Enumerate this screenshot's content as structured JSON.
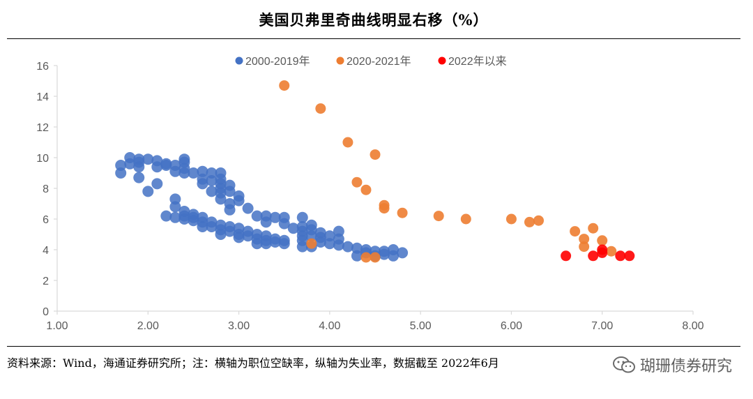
{
  "title": "美国贝弗里奇曲线明显右移（%）",
  "source": "资料来源：Wind，海通证券研究所；注：横轴为职位空缺率，纵轴为失业率，数据截至 2022年6月",
  "watermark": "瑚珊债券研究",
  "colors": {
    "blue": "#4472C4",
    "orange": "#ED7D31",
    "red": "#FF0000",
    "axis": "#D9D9D9",
    "text": "#595959"
  },
  "chart_data": {
    "type": "scatter",
    "title": "美国贝弗里奇曲线明显右移（%）",
    "xlabel": "职位空缺率",
    "ylabel": "失业率",
    "xlim": [
      1.0,
      8.0
    ],
    "ylim": [
      0,
      16
    ],
    "xticks": [
      "1.00",
      "2.00",
      "3.00",
      "4.00",
      "5.00",
      "6.00",
      "7.00",
      "8.00"
    ],
    "yticks": [
      "0",
      "2",
      "4",
      "6",
      "8",
      "10",
      "12",
      "14",
      "16"
    ],
    "legend_position": "top",
    "series": [
      {
        "name": "2000-2019年",
        "color": "#4472C4",
        "points": [
          [
            1.7,
            9.0
          ],
          [
            1.7,
            9.5
          ],
          [
            1.8,
            10.0
          ],
          [
            1.8,
            9.6
          ],
          [
            1.9,
            9.9
          ],
          [
            1.9,
            9.7
          ],
          [
            1.9,
            9.4
          ],
          [
            1.9,
            8.7
          ],
          [
            2.0,
            9.9
          ],
          [
            2.0,
            7.8
          ],
          [
            2.1,
            9.8
          ],
          [
            2.1,
            9.4
          ],
          [
            2.1,
            8.3
          ],
          [
            2.2,
            9.6
          ],
          [
            2.2,
            9.5
          ],
          [
            2.3,
            9.5
          ],
          [
            2.3,
            9.1
          ],
          [
            2.3,
            7.3
          ],
          [
            2.3,
            6.8
          ],
          [
            2.3,
            6.1
          ],
          [
            2.2,
            6.2
          ],
          [
            2.4,
            9.9
          ],
          [
            2.4,
            9.7
          ],
          [
            2.4,
            9.3
          ],
          [
            2.4,
            9.0
          ],
          [
            2.4,
            6.5
          ],
          [
            2.4,
            6.2
          ],
          [
            2.4,
            6.0
          ],
          [
            2.5,
            9.0
          ],
          [
            2.5,
            6.3
          ],
          [
            2.5,
            6.1
          ],
          [
            2.5,
            5.9
          ],
          [
            2.6,
            9.1
          ],
          [
            2.6,
            8.6
          ],
          [
            2.6,
            8.3
          ],
          [
            2.6,
            6.1
          ],
          [
            2.6,
            5.8
          ],
          [
            2.6,
            5.5
          ],
          [
            2.7,
            9.0
          ],
          [
            2.7,
            8.5
          ],
          [
            2.7,
            7.8
          ],
          [
            2.7,
            5.8
          ],
          [
            2.7,
            5.5
          ],
          [
            2.8,
            9.0
          ],
          [
            2.8,
            8.6
          ],
          [
            2.8,
            8.3
          ],
          [
            2.8,
            8.0
          ],
          [
            2.8,
            7.7
          ],
          [
            2.8,
            7.3
          ],
          [
            2.8,
            5.6
          ],
          [
            2.8,
            5.3
          ],
          [
            2.8,
            5.0
          ],
          [
            2.9,
            8.2
          ],
          [
            2.9,
            7.8
          ],
          [
            2.9,
            7.0
          ],
          [
            2.9,
            6.6
          ],
          [
            2.9,
            5.5
          ],
          [
            2.9,
            5.2
          ],
          [
            3.0,
            7.5
          ],
          [
            3.0,
            7.2
          ],
          [
            3.0,
            5.4
          ],
          [
            3.0,
            5.0
          ],
          [
            3.0,
            4.8
          ],
          [
            3.1,
            6.7
          ],
          [
            3.1,
            5.2
          ],
          [
            3.1,
            4.9
          ],
          [
            3.2,
            6.2
          ],
          [
            3.2,
            5.0
          ],
          [
            3.2,
            4.7
          ],
          [
            3.2,
            4.4
          ],
          [
            3.3,
            6.2
          ],
          [
            3.3,
            5.8
          ],
          [
            3.3,
            4.9
          ],
          [
            3.3,
            4.6
          ],
          [
            3.3,
            4.4
          ],
          [
            3.4,
            6.1
          ],
          [
            3.4,
            4.7
          ],
          [
            3.4,
            4.5
          ],
          [
            3.5,
            6.1
          ],
          [
            3.5,
            5.7
          ],
          [
            3.5,
            4.6
          ],
          [
            3.5,
            4.4
          ],
          [
            3.6,
            5.4
          ],
          [
            3.7,
            6.1
          ],
          [
            3.7,
            5.5
          ],
          [
            3.7,
            5.2
          ],
          [
            3.7,
            4.9
          ],
          [
            3.7,
            4.6
          ],
          [
            3.7,
            4.2
          ],
          [
            3.8,
            5.6
          ],
          [
            3.8,
            5.3
          ],
          [
            3.8,
            4.9
          ],
          [
            3.8,
            4.2
          ],
          [
            3.9,
            5.1
          ],
          [
            3.9,
            4.8
          ],
          [
            3.9,
            4.5
          ],
          [
            4.0,
            4.9
          ],
          [
            4.0,
            4.4
          ],
          [
            4.1,
            5.2
          ],
          [
            4.1,
            4.7
          ],
          [
            4.1,
            4.3
          ],
          [
            4.2,
            4.2
          ],
          [
            4.3,
            4.1
          ],
          [
            4.3,
            3.6
          ],
          [
            4.4,
            4.0
          ],
          [
            4.4,
            3.8
          ],
          [
            4.5,
            3.9
          ],
          [
            4.5,
            3.6
          ],
          [
            4.6,
            3.9
          ],
          [
            4.6,
            3.7
          ],
          [
            4.7,
            4.0
          ],
          [
            4.7,
            3.6
          ],
          [
            4.8,
            3.8
          ]
        ]
      },
      {
        "name": "2020-2021年",
        "color": "#ED7D31",
        "points": [
          [
            3.5,
            14.7
          ],
          [
            3.9,
            13.2
          ],
          [
            4.2,
            11.0
          ],
          [
            4.5,
            10.2
          ],
          [
            4.3,
            8.4
          ],
          [
            4.4,
            7.9
          ],
          [
            4.6,
            6.9
          ],
          [
            4.6,
            6.7
          ],
          [
            4.8,
            6.4
          ],
          [
            5.2,
            6.2
          ],
          [
            5.5,
            6.0
          ],
          [
            6.0,
            6.0
          ],
          [
            6.2,
            5.8
          ],
          [
            6.3,
            5.9
          ],
          [
            6.7,
            5.2
          ],
          [
            6.8,
            4.7
          ],
          [
            6.8,
            4.2
          ],
          [
            6.9,
            5.4
          ],
          [
            7.0,
            4.6
          ],
          [
            7.1,
            3.9
          ],
          [
            3.8,
            4.4
          ],
          [
            4.4,
            3.5
          ],
          [
            4.5,
            3.5
          ]
        ]
      },
      {
        "name": "2022年以来",
        "color": "#FF0000",
        "points": [
          [
            6.6,
            3.6
          ],
          [
            6.9,
            3.6
          ],
          [
            7.0,
            4.0
          ],
          [
            7.0,
            3.8
          ],
          [
            7.2,
            3.6
          ],
          [
            7.3,
            3.6
          ]
        ]
      }
    ]
  }
}
